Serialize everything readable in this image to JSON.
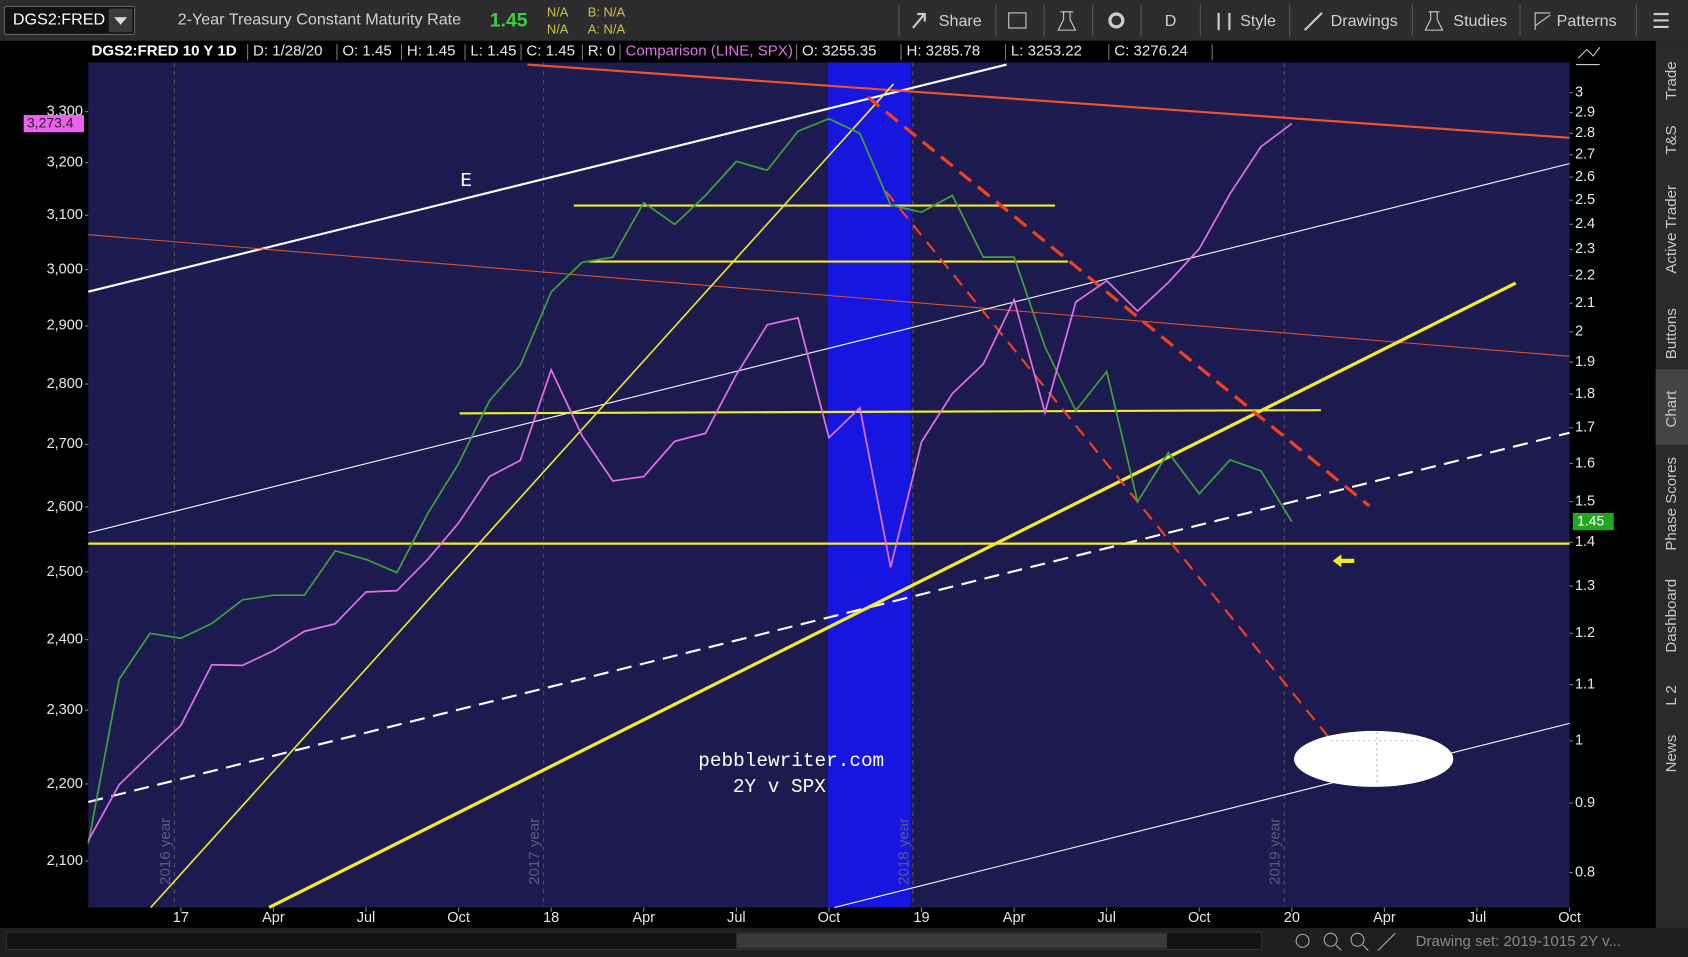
{
  "toolbar": {
    "symbol": "DGS2:FRED",
    "description": "2-Year Treasury Constant Maturity Rate",
    "last": "1.45",
    "change": "N/A",
    "change_pct": "N/A",
    "bid": "B: N/A",
    "ask": "A: N/A",
    "buttons": [
      "Share",
      "D",
      "Style",
      "Drawings",
      "Studies",
      "Patterns"
    ]
  },
  "legend": {
    "fields": [
      "D: 1/28/20",
      "O: 1.45",
      "H: 1.45",
      "L: 1.45",
      "C: 1.45",
      "R: 0"
    ],
    "comparison_fields": [
      "O: 3255.35",
      "H: 3285.78",
      "L: 3253.22",
      "C: 3276.24"
    ]
  },
  "sidebar": [
    "Trade",
    "T&S",
    "Active Trader",
    "Buttons",
    "Chart",
    "Phase Scores",
    "Dashboard",
    "L 2",
    "News"
  ],
  "status": "Drawing set: 2019-1015 2Y v...",
  "chart_data": {
    "type": "line",
    "annotations": [
      "E",
      "pebblewriter.com",
      "2Y v SPX"
    ],
    "period_labels": [
      "2016 year",
      "2017 year",
      "2018 year",
      "2019 year"
    ],
    "x": [
      "2016-10",
      "2016-11",
      "2016-12",
      "2017-01",
      "2017-02",
      "2017-03",
      "2017-04",
      "2017-05",
      "2017-06",
      "2017-07",
      "2017-08",
      "2017-09",
      "2017-10",
      "2017-11",
      "2017-12",
      "2018-01",
      "2018-02",
      "2018-03",
      "2018-04",
      "2018-05",
      "2018-06",
      "2018-07",
      "2018-08",
      "2018-09",
      "2018-10",
      "2018-11",
      "2018-12",
      "2019-01",
      "2019-02",
      "2019-03",
      "2019-04",
      "2019-05",
      "2019-06",
      "2019-07",
      "2019-08",
      "2019-09",
      "2019-10",
      "2019-11",
      "2019-12",
      "2020-01"
    ],
    "series": [
      {
        "name": "DGS2:FRED 10 Y 1D",
        "color": "#3fa13a",
        "axis": "y2",
        "price_badge": "1.45",
        "values": [
          0.84,
          1.11,
          1.2,
          1.19,
          1.22,
          1.27,
          1.28,
          1.28,
          1.38,
          1.36,
          1.33,
          1.47,
          1.6,
          1.78,
          1.89,
          2.14,
          2.25,
          2.27,
          2.49,
          2.4,
          2.52,
          2.67,
          2.63,
          2.81,
          2.87,
          2.8,
          2.48,
          2.45,
          2.52,
          2.27,
          2.27,
          1.95,
          1.75,
          1.87,
          1.5,
          1.63,
          1.52,
          1.61,
          1.58,
          1.45
        ]
      },
      {
        "name": "Comparison (LINE, SPX)",
        "color": "#e070e8",
        "axis": "y",
        "price_badge": "3,273.4",
        "values": [
          2126,
          2199,
          2239,
          2279,
          2364,
          2363,
          2384,
          2412,
          2423,
          2470,
          2472,
          2519,
          2575,
          2648,
          2674,
          2824,
          2714,
          2641,
          2648,
          2705,
          2718,
          2816,
          2902,
          2914,
          2711,
          2760,
          2507,
          2704,
          2784,
          2834,
          2946,
          2752,
          2942,
          2980,
          2926,
          2977,
          3038,
          3141,
          3231,
          3276.24
        ]
      }
    ],
    "xlim": [
      "2016-10",
      "2020-10"
    ],
    "xticks": [
      {
        "value": "2017-01",
        "label": "17"
      },
      {
        "value": "2017-04",
        "label": "Apr"
      },
      {
        "value": "2017-07",
        "label": "Jul"
      },
      {
        "value": "2017-10",
        "label": "Oct"
      },
      {
        "value": "2018-01",
        "label": "18"
      },
      {
        "value": "2018-04",
        "label": "Apr"
      },
      {
        "value": "2018-07",
        "label": "Jul"
      },
      {
        "value": "2018-10",
        "label": "Oct"
      },
      {
        "value": "2019-01",
        "label": "19"
      },
      {
        "value": "2019-04",
        "label": "Apr"
      },
      {
        "value": "2019-07",
        "label": "Jul"
      },
      {
        "value": "2019-10",
        "label": "Oct"
      },
      {
        "value": "2020-01",
        "label": "20"
      },
      {
        "value": "2020-04",
        "label": "Apr"
      },
      {
        "value": "2020-07",
        "label": "Jul"
      },
      {
        "value": "2020-10",
        "label": "Oct"
      }
    ],
    "ylim": [
      2042,
      3395
    ],
    "ylog": true,
    "yticks": [
      {
        "value": 2100,
        "label": "2,100"
      },
      {
        "value": 2200,
        "label": "2,200"
      },
      {
        "value": 2300,
        "label": "2,300"
      },
      {
        "value": 2400,
        "label": "2,400"
      },
      {
        "value": 2500,
        "label": "2,500"
      },
      {
        "value": 2600,
        "label": "2,600"
      },
      {
        "value": 2700,
        "label": "2,700"
      },
      {
        "value": 2800,
        "label": "2,800"
      },
      {
        "value": 2900,
        "label": "2,900"
      },
      {
        "value": 3000,
        "label": "3,000"
      },
      {
        "value": 3100,
        "label": "3,100"
      },
      {
        "value": 3200,
        "label": "3,200"
      },
      {
        "value": 3300,
        "label": "3,300"
      }
    ],
    "y2lim": [
      0.754,
      3.146
    ],
    "y2log": true,
    "y2ticks": [
      0.8,
      0.9,
      1,
      1.1,
      1.2,
      1.3,
      1.4,
      1.5,
      1.6,
      1.7,
      1.8,
      1.9,
      2,
      2.1,
      2.2,
      2.3,
      2.4,
      2.5,
      2.6,
      2.7,
      2.8,
      2.9,
      3
    ]
  }
}
